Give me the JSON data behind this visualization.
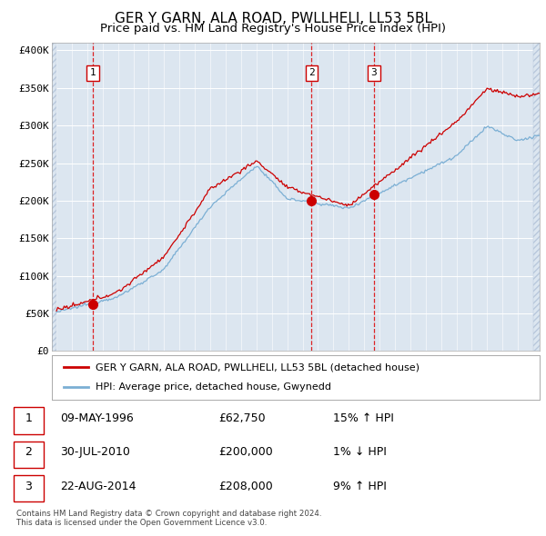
{
  "title1": "GER Y GARN, ALA ROAD, PWLLHELI, LL53 5BL",
  "title2": "Price paid vs. HM Land Registry's House Price Index (HPI)",
  "legend_line1": "GER Y GARN, ALA ROAD, PWLLHELI, LL53 5BL (detached house)",
  "legend_line2": "HPI: Average price, detached house, Gwynedd",
  "sale1_date": "09-MAY-1996",
  "sale1_price": 62750,
  "sale1_price_str": "£62,750",
  "sale1_hpi": "15% ↑ HPI",
  "sale2_date": "30-JUL-2010",
  "sale2_price": 200000,
  "sale2_price_str": "£200,000",
  "sale2_hpi": "1% ↓ HPI",
  "sale3_date": "22-AUG-2014",
  "sale3_price": 208000,
  "sale3_price_str": "£208,000",
  "sale3_hpi": "9% ↑ HPI",
  "footnote1": "Contains HM Land Registry data © Crown copyright and database right 2024.",
  "footnote2": "This data is licensed under the Open Government Licence v3.0.",
  "ylabel_ticks": [
    "£0",
    "£50K",
    "£100K",
    "£150K",
    "£200K",
    "£250K",
    "£300K",
    "£350K",
    "£400K"
  ],
  "ytick_values": [
    0,
    50000,
    100000,
    150000,
    200000,
    250000,
    300000,
    350000,
    400000
  ],
  "hpi_color": "#7bafd4",
  "price_color": "#cc0000",
  "bg_color": "#dce6f0",
  "grid_color": "#ffffff",
  "sale1_x": 1996.36,
  "sale2_x": 2010.58,
  "sale3_x": 2014.64,
  "xstart": 1993.7,
  "xend": 2025.4,
  "title_fontsize": 11,
  "subtitle_fontsize": 9.5
}
